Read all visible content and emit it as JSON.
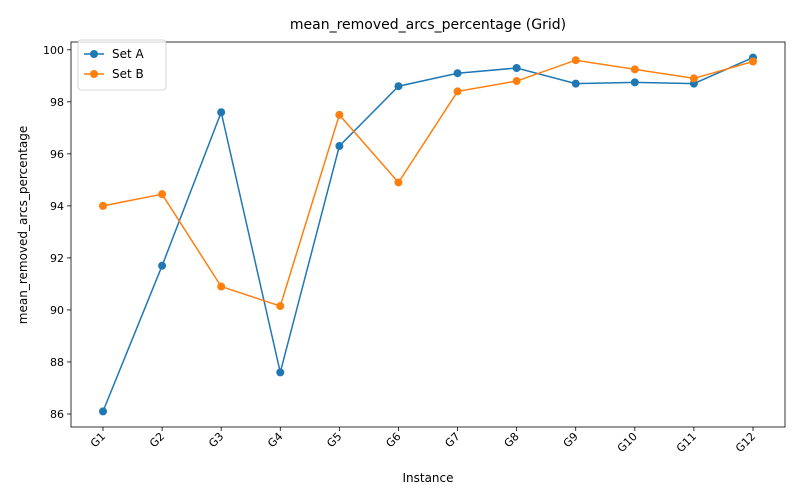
{
  "chart_data": {
    "type": "line",
    "title": "mean_removed_arcs_percentage  (Grid)",
    "xlabel": "Instance",
    "ylabel": "mean_removed_arcs_percentage",
    "categories": [
      "G1",
      "G2",
      "G3",
      "G4",
      "G5",
      "G6",
      "G7",
      "G8",
      "G9",
      "G10",
      "G11",
      "G12"
    ],
    "ylim": [
      85.5,
      100.3
    ],
    "yticks": [
      "86",
      "88",
      "90",
      "92",
      "94",
      "96",
      "98",
      "100"
    ],
    "grid": false,
    "legend_position": "top-left",
    "series": [
      {
        "name": "Set A",
        "color": "#1f77b4",
        "values": [
          86.1,
          91.7,
          97.6,
          87.6,
          96.3,
          98.6,
          99.1,
          99.3,
          98.7,
          98.75,
          98.7,
          99.7
        ]
      },
      {
        "name": "Set B",
        "color": "#ff7f0e",
        "values": [
          94.0,
          94.45,
          90.9,
          90.15,
          97.5,
          94.9,
          98.4,
          98.8,
          99.6,
          99.25,
          98.9,
          99.55
        ]
      }
    ]
  }
}
